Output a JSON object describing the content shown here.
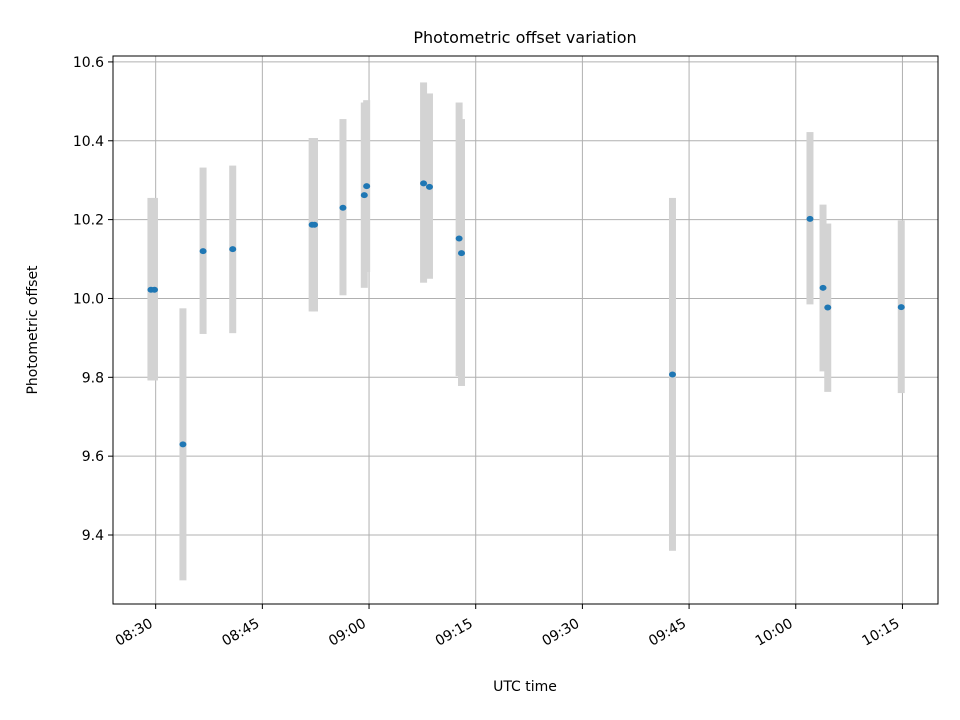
{
  "chart_data": {
    "type": "scatter",
    "title": "Photometric offset variation",
    "xlabel": "UTC time",
    "ylabel": "Photometric offset",
    "x_unit": "UTC time (HH:MM)",
    "xlim": [
      "08:24",
      "10:20"
    ],
    "ylim": [
      9.225,
      10.615
    ],
    "x_ticks": [
      "08:30",
      "08:45",
      "09:00",
      "09:15",
      "09:30",
      "09:45",
      "10:00",
      "10:15"
    ],
    "y_ticks": [
      9.4,
      9.6,
      9.8,
      10.0,
      10.2,
      10.4,
      10.6
    ],
    "grid": true,
    "marker_color": "#1f77b4",
    "errorbar_color": "#d3d3d3",
    "points": [
      {
        "x": "08:29:20",
        "y": 10.022,
        "ylow": 9.792,
        "yhigh": 10.255
      },
      {
        "x": "08:29:50",
        "y": 10.022,
        "ylow": 9.792,
        "yhigh": 10.255
      },
      {
        "x": "08:33:50",
        "y": 9.63,
        "ylow": 9.285,
        "yhigh": 9.975
      },
      {
        "x": "08:36:40",
        "y": 10.12,
        "ylow": 9.91,
        "yhigh": 10.332
      },
      {
        "x": "08:40:50",
        "y": 10.125,
        "ylow": 9.912,
        "yhigh": 10.337
      },
      {
        "x": "08:52:00",
        "y": 10.187,
        "ylow": 9.967,
        "yhigh": 10.407
      },
      {
        "x": "08:52:20",
        "y": 10.187,
        "ylow": 9.967,
        "yhigh": 10.407
      },
      {
        "x": "08:56:20",
        "y": 10.23,
        "ylow": 10.008,
        "yhigh": 10.455
      },
      {
        "x": "08:59:20",
        "y": 10.262,
        "ylow": 10.027,
        "yhigh": 10.497
      },
      {
        "x": "08:59:40",
        "y": 10.285,
        "ylow": 10.067,
        "yhigh": 10.503
      },
      {
        "x": "09:07:40",
        "y": 10.292,
        "ylow": 10.04,
        "yhigh": 10.548
      },
      {
        "x": "09:08:30",
        "y": 10.283,
        "ylow": 10.05,
        "yhigh": 10.52
      },
      {
        "x": "09:12:40",
        "y": 10.152,
        "ylow": 9.803,
        "yhigh": 10.497
      },
      {
        "x": "09:13:00",
        "y": 10.115,
        "ylow": 9.778,
        "yhigh": 10.455
      },
      {
        "x": "09:42:40",
        "y": 9.807,
        "ylow": 9.36,
        "yhigh": 10.255
      },
      {
        "x": "10:02:00",
        "y": 10.202,
        "ylow": 9.985,
        "yhigh": 10.422
      },
      {
        "x": "10:03:50",
        "y": 10.027,
        "ylow": 9.815,
        "yhigh": 10.238
      },
      {
        "x": "10:04:30",
        "y": 9.977,
        "ylow": 9.763,
        "yhigh": 10.19
      },
      {
        "x": "10:14:50",
        "y": 9.978,
        "ylow": 9.76,
        "yhigh": 10.198
      }
    ]
  }
}
